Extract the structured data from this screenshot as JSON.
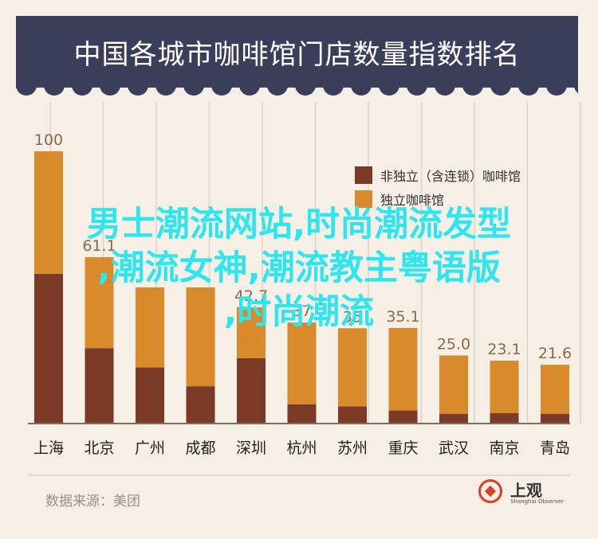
{
  "header": {
    "title": "中国各城市咖啡馆门店数量指数排名"
  },
  "chart_data": {
    "type": "bar",
    "stacked": true,
    "categories": [
      "上海",
      "北京",
      "广州",
      "成都",
      "深圳",
      "杭州",
      "苏州",
      "重庆",
      "武汉",
      "南京",
      "青岛"
    ],
    "totals": [
      100,
      61.1,
      50,
      50,
      42.7,
      37.1,
      35,
      35.1,
      25.0,
      23.1,
      21.6
    ],
    "total_labels": [
      "100",
      "61.1",
      "",
      "",
      "42.7",
      "37",
      "35",
      "35.1",
      "25.0",
      "23.1",
      "21.6"
    ],
    "series": [
      {
        "name": "非独立（含连锁）咖啡馆",
        "color": "#7a3a26",
        "values": [
          55,
          27.7,
          20.6,
          13.7,
          24,
          7.1,
          6.3,
          4.8,
          3.6,
          3.8,
          3.6
        ]
      },
      {
        "name": "独立咖啡馆",
        "color": "#d98a2b",
        "values": [
          45,
          33.4,
          29.4,
          36.3,
          18.7,
          30,
          28.7,
          30.3,
          21.4,
          19.3,
          18.0
        ]
      }
    ],
    "ylim": [
      0,
      100
    ],
    "legend_position": "top-right"
  },
  "legend": [
    {
      "label": "非独立（含连锁）咖啡馆",
      "color": "#7a3a26"
    },
    {
      "label": "独立咖啡馆",
      "color": "#d98a2b"
    }
  ],
  "footer": {
    "source": "数据来源：美团"
  },
  "logo": {
    "name": "上观",
    "sub": "Shanghai Observer"
  },
  "overlay": {
    "line1": "男士潮流网站,时尚潮流发型",
    "line2": ",潮流女神,潮流教主粤语版",
    "line3": ",时尚潮流"
  }
}
